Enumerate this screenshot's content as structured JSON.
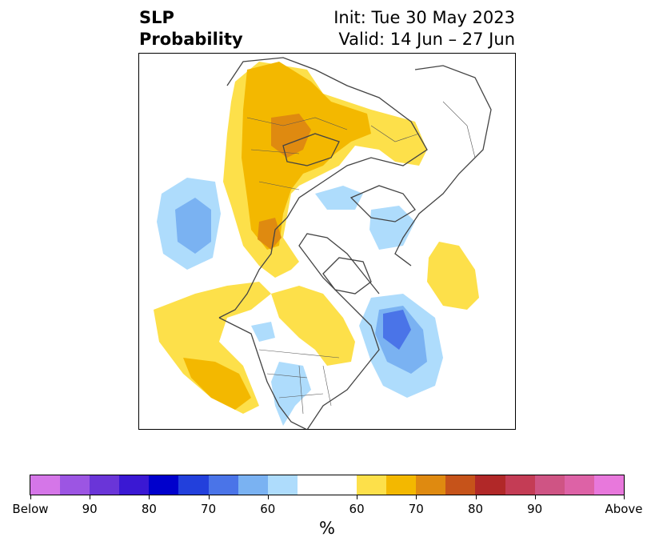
{
  "title": {
    "left_line1": "SLP",
    "left_line2": "Probability",
    "right_line1": "Init: Tue 30 May 2023",
    "right_line2": "Valid: 14 Jun – 27 Jun"
  },
  "map": {
    "projection": "north-polar-stereographic",
    "variable": "SLP probability",
    "anomalies": [
      {
        "region": "Western Russia / Eastern Europe",
        "category": "above",
        "max_percent": 70
      },
      {
        "region": "Northern Pacific",
        "category": "below",
        "max_percent": 60
      },
      {
        "region": "Gulf of Alaska / Western North America",
        "category": "above",
        "max_percent": 60
      },
      {
        "region": "Hudson Bay / Eastern Canada",
        "category": "above",
        "max_percent": 60
      },
      {
        "region": "Western Atlantic off Newfoundland",
        "category": "below",
        "max_percent": 70
      },
      {
        "region": "Central United States",
        "category": "below",
        "max_percent": 60
      },
      {
        "region": "Greenland Sea",
        "category": "below",
        "max_percent": 60
      },
      {
        "region": "Eastern Atlantic",
        "category": "above",
        "max_percent": 60
      }
    ]
  },
  "colorbar": {
    "colors": [
      "#d576e8",
      "#9c55e3",
      "#6a35d8",
      "#3a18d3",
      "#0000cc",
      "#2240dc",
      "#4a74e8",
      "#7ab2f2",
      "#aedcfc",
      "#ffffff",
      "#fde04a",
      "#f3b800",
      "#df8a10",
      "#c6531a",
      "#b12828",
      "#c43c55",
      "#cf5484",
      "#dd62a6",
      "#e878dc"
    ],
    "cell_units": [
      1,
      1,
      1,
      1,
      1,
      1,
      1,
      1,
      1,
      2,
      1,
      1,
      1,
      1,
      1,
      1,
      1,
      1,
      1
    ],
    "ticks": [
      "Below",
      "90",
      "80",
      "70",
      "60",
      "60",
      "70",
      "80",
      "90",
      "Above"
    ],
    "unit": "%"
  }
}
